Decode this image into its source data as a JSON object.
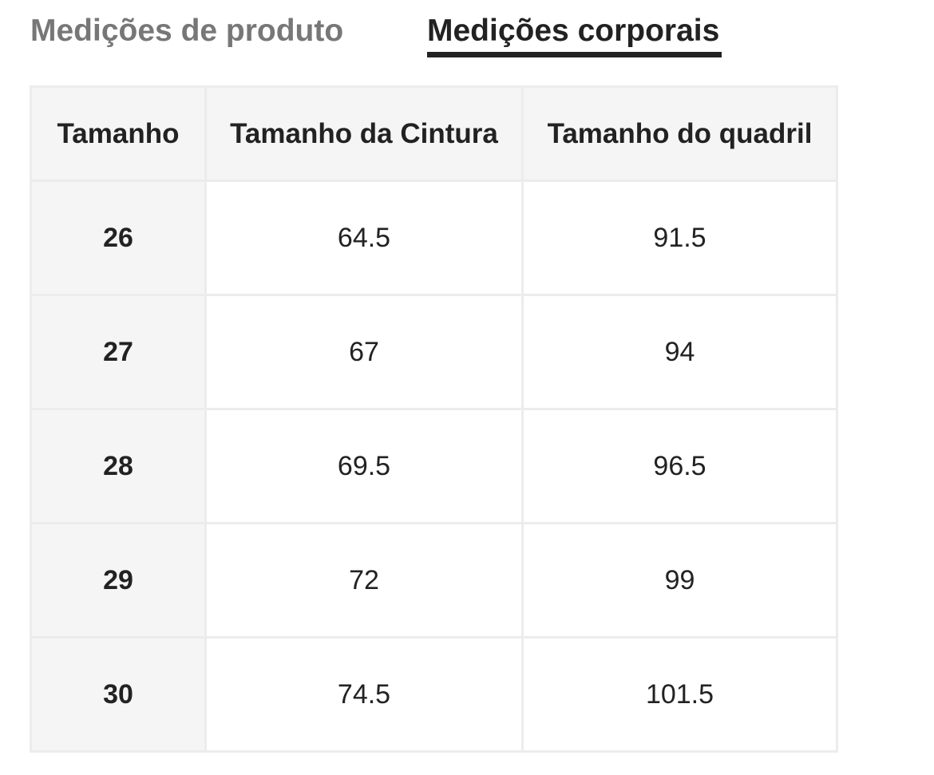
{
  "tabs": [
    {
      "label": "Medições de produto",
      "active": false
    },
    {
      "label": "Medições corporais",
      "active": true
    }
  ],
  "table": {
    "headers": [
      "Tamanho",
      "Tamanho da Cintura",
      "Tamanho do quadril"
    ],
    "rows": [
      {
        "size": "26",
        "waist": "64.5",
        "hip": "91.5"
      },
      {
        "size": "27",
        "waist": "67",
        "hip": "94"
      },
      {
        "size": "28",
        "waist": "69.5",
        "hip": "96.5"
      },
      {
        "size": "29",
        "waist": "72",
        "hip": "99"
      },
      {
        "size": "30",
        "waist": "74.5",
        "hip": "101.5"
      }
    ]
  },
  "colors": {
    "active_tab": "#222222",
    "inactive_tab": "#777777",
    "header_bg": "#f5f5f5",
    "border": "#ececec"
  }
}
